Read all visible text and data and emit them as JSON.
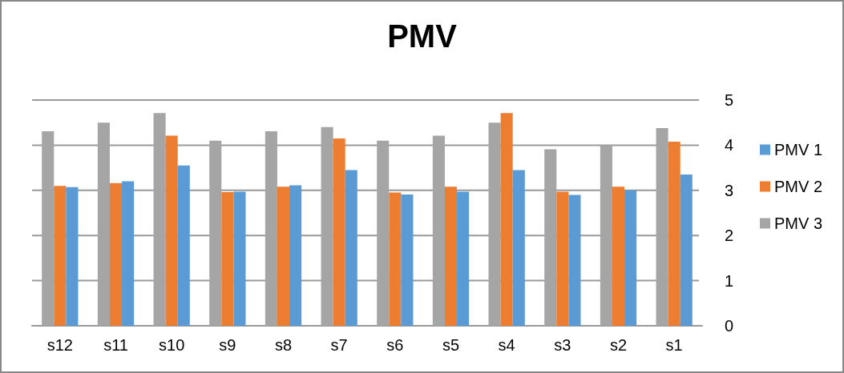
{
  "chart_data": {
    "type": "bar",
    "title": "PMV",
    "categories": [
      "s12",
      "s11",
      "s10",
      "s9",
      "s8",
      "s7",
      "s6",
      "s5",
      "s4",
      "s3",
      "s2",
      "s1"
    ],
    "series": [
      {
        "name": "PMV 1",
        "color": "#5b9bd5",
        "values": [
          3.07,
          3.2,
          3.55,
          2.97,
          3.11,
          3.45,
          2.91,
          2.97,
          3.45,
          2.9,
          3.0,
          3.35
        ]
      },
      {
        "name": "PMV 2",
        "color": "#ed7d31",
        "values": [
          3.1,
          3.16,
          4.21,
          2.96,
          3.08,
          4.15,
          2.95,
          3.08,
          4.71,
          2.97,
          3.08,
          4.08
        ]
      },
      {
        "name": "PMV 3",
        "color": "#a5a5a5",
        "values": [
          4.31,
          4.5,
          4.71,
          4.1,
          4.31,
          4.4,
          4.1,
          4.21,
          4.5,
          3.91,
          4.0,
          4.38
        ]
      }
    ],
    "ylim": [
      0,
      5
    ],
    "yticks": [
      0,
      1,
      2,
      3,
      4,
      5
    ],
    "grid": "y",
    "legend": "right"
  }
}
